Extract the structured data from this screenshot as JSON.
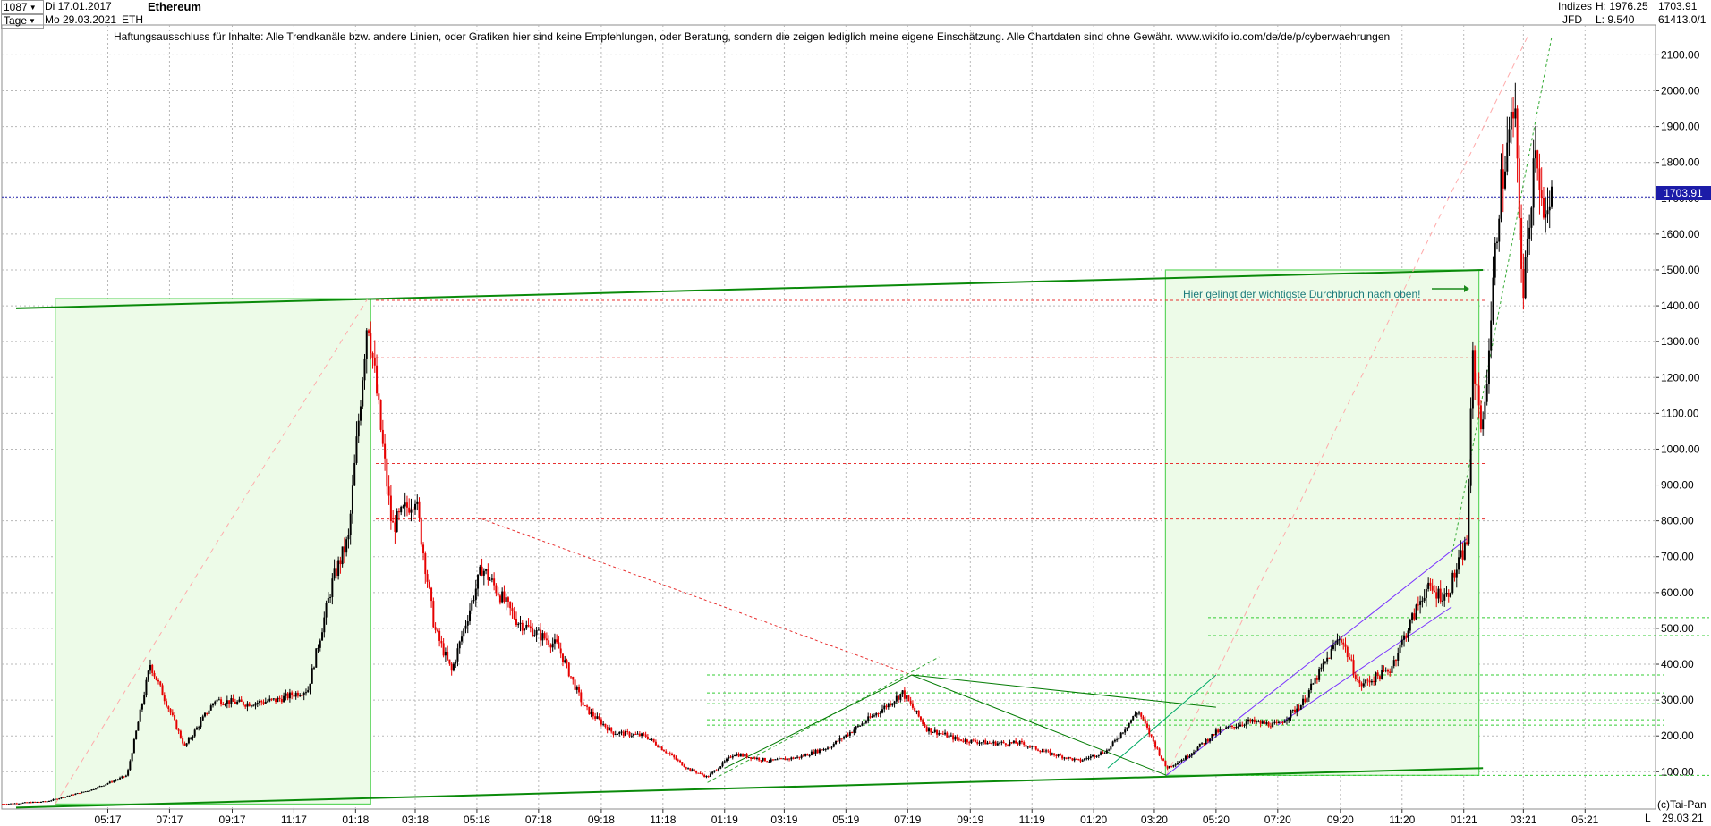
{
  "header": {
    "bar_count": "1087",
    "period": "Tage",
    "date_from": "Di 17.01.2017",
    "date_to": "Mo 29.03.2021",
    "symbol": "ETH",
    "title": "Ethereum",
    "category": "Indizes",
    "source": "JFD",
    "high": "H: 1976.25",
    "low": "L: 9.540",
    "last": "1703.91",
    "volume": "61413.0/1"
  },
  "disclaimer": "Haftungsausschluss für Inhalte: Alle Trendkanäle bzw. andere Linien, oder Grafiken hier sind keine Empfehlungen, oder Beratung, sondern die zeigen lediglich meine eigene Einschätzung. Alle Chartdaten sind ohne Gewähr.  www.wikifolio.com/de/de/p/cyberwaehrungen",
  "annotation": "Hier gelingt der wichtigste Durchbruch nach oben!",
  "footer": {
    "copyright": "(c)Tai-Pan",
    "date": "29.03.21",
    "scale": "L"
  },
  "colors": {
    "up": "#000000",
    "down": "#e60000",
    "grid": "#b8b8b8",
    "trend": "#008000",
    "price_line": "#1c1ca8",
    "support": "#e83030",
    "channel": "#7a33ff",
    "box_fill": "#edfbe8"
  },
  "chart_data": {
    "type": "candlestick",
    "title": "Ethereum",
    "ylim": [
      0,
      2150
    ],
    "y_ticks": [
      "100.00",
      "200.00",
      "300.00",
      "400.00",
      "500.00",
      "600.00",
      "700.00",
      "800.00",
      "900.00",
      "1000.00",
      "1100.00",
      "1200.00",
      "1300.00",
      "1400.00",
      "1500.00",
      "1600.00",
      "1700.00",
      "1800.00",
      "1900.00",
      "2000.00",
      "2100.00"
    ],
    "x_ticks": [
      "05:17",
      "07:17",
      "09:17",
      "11:17",
      "01:18",
      "03:18",
      "05:18",
      "07:18",
      "09:18",
      "11:18",
      "01:19",
      "03:19",
      "05:19",
      "07:19",
      "09:19",
      "11:19",
      "01:20",
      "03:20",
      "05:20",
      "07:20",
      "09:20",
      "11:20",
      "01:21",
      "03:21",
      "05:21"
    ],
    "current_price": 1703.91,
    "series": [
      {
        "name": "Ethereum",
        "x": [
          "2017-01-17",
          "2017-03-01",
          "2017-04-15",
          "2017-05-20",
          "2017-06-12",
          "2017-07-16",
          "2017-08-15",
          "2017-09-15",
          "2017-10-15",
          "2017-11-15",
          "2017-12-10",
          "2017-12-25",
          "2018-01-13",
          "2018-02-06",
          "2018-03-01",
          "2018-03-20",
          "2018-04-06",
          "2018-05-06",
          "2018-06-10",
          "2018-07-20",
          "2018-08-15",
          "2018-09-12",
          "2018-10-15",
          "2018-11-25",
          "2018-12-15",
          "2019-01-10",
          "2019-02-15",
          "2019-03-15",
          "2019-04-15",
          "2019-05-30",
          "2019-06-26",
          "2019-07-20",
          "2019-08-20",
          "2019-09-20",
          "2019-10-20",
          "2019-11-20",
          "2019-12-18",
          "2020-01-15",
          "2020-02-14",
          "2020-03-13",
          "2020-04-01",
          "2020-05-01",
          "2020-06-01",
          "2020-07-01",
          "2020-07-25",
          "2020-09-01",
          "2020-09-20",
          "2020-10-20",
          "2020-11-24",
          "2020-12-15",
          "2021-01-04",
          "2021-01-10",
          "2021-01-20",
          "2021-02-05",
          "2021-02-20",
          "2021-03-01",
          "2021-03-13",
          "2021-03-22",
          "2021-03-29"
        ],
        "values": [
          10,
          17,
          50,
          90,
          400,
          170,
          300,
          290,
          300,
          330,
          640,
          750,
          1380,
          780,
          870,
          500,
          380,
          670,
          520,
          450,
          280,
          210,
          200,
          110,
          85,
          150,
          130,
          140,
          170,
          260,
          320,
          220,
          190,
          180,
          180,
          150,
          130,
          160,
          270,
          110,
          140,
          210,
          240,
          230,
          290,
          480,
          340,
          385,
          610,
          590,
          740,
          1250,
          1050,
          1700,
          1950,
          1420,
          1880,
          1600,
          1704
        ]
      },
      {
        "name": "Trendlinie oben",
        "x": [
          "2017-01-17",
          "2021-01-20"
        ],
        "values": [
          1393,
          1500
        ]
      },
      {
        "name": "Trendlinie unten",
        "x": [
          "2017-01-17",
          "2021-01-20"
        ],
        "values": [
          0,
          110
        ]
      }
    ],
    "horizontal_levels": [
      1415,
      1255,
      960,
      805,
      370,
      320,
      290,
      245,
      230
    ],
    "boxes": [
      {
        "from": "2017-03-10",
        "to": "2018-01-16",
        "low": 10,
        "high": 1420
      },
      {
        "from": "2020-03-12",
        "to": "2021-01-16",
        "low": 90,
        "high": 1500
      }
    ],
    "grid": true
  }
}
